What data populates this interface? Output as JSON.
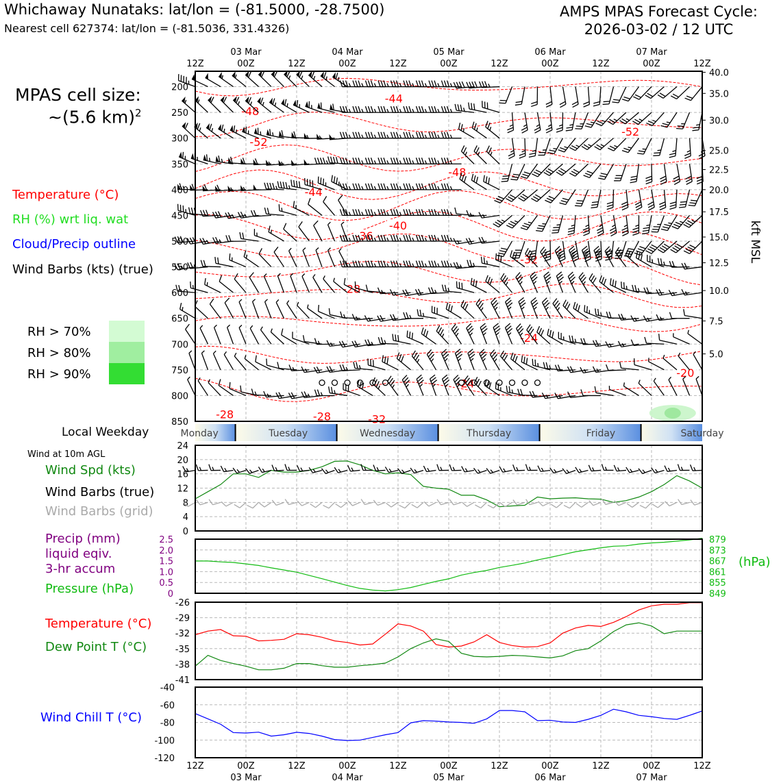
{
  "header": {
    "station_line": "Whichaway Nunataks: lat/lon = (-81.5000, -28.7500)",
    "cell_line": "Nearest cell 627374: lat/lon = (-81.5036, 331.4326)",
    "cycle_line1": "AMPS MPAS Forecast Cycle:",
    "cycle_line2": "2026-03-02 / 12 UTC"
  },
  "cell_size": {
    "line1": "MPAS cell size:",
    "line2": "~(5.6 km)",
    "exponent": "2"
  },
  "legend": {
    "temperature": "Temperature (°C)",
    "rh": "RH (%) wrt liq. wat",
    "cloud": "Cloud/Precip outline",
    "barbs": "Wind Barbs (kts) (true)",
    "rh70": "RH > 70%",
    "rh80": "RH > 80%",
    "rh90": "RH > 90%",
    "kft_label": "kft MSL",
    "weekday_label": "Local Weekday",
    "wind10m_label": "Wind at 10m AGL",
    "wind_spd": "Wind Spd (kts)",
    "wind_barbs_true": "Wind Barbs (true)",
    "wind_barbs_grid": "Wind Barbs (grid)",
    "precip1": "Precip (mm)",
    "precip2": "liquid eqiv.",
    "precip3": "3-hr accum",
    "pressure": "Pressure (hPa)",
    "hpa_unit": "(hPa)",
    "temp2": "Temperature (°C)",
    "dewpoint": "Dew Point T (°C)",
    "windchill": "Wind Chill T (°C)"
  },
  "colors": {
    "temp": "#ff0000",
    "rh": "#22dd22",
    "cloud": "#0000ff",
    "windspd": "#118811",
    "precip": "#800080",
    "pressure": "#11bb11",
    "dew": "#118811",
    "chill": "#0000ff",
    "rh70": "#d3fbd3",
    "rh80": "#a0eea0",
    "rh90": "#33dd33"
  },
  "chart_data": [
    {
      "type": "line",
      "name": "upper-air-cross-section",
      "time_ticks": [
        "12Z",
        "00Z",
        "12Z",
        "00Z",
        "12Z",
        "00Z",
        "12Z",
        "00Z",
        "12Z",
        "00Z",
        "12Z"
      ],
      "date_ticks": [
        "03 Mar",
        "04 Mar",
        "05 Mar",
        "06 Mar",
        "07 Mar"
      ],
      "pressure_ticks": [
        "200",
        "250",
        "300",
        "350",
        "400",
        "450",
        "500",
        "550",
        "600",
        "650",
        "700",
        "750",
        "800",
        "850"
      ],
      "plim": [
        170,
        850
      ],
      "kft_ticks": [
        {
          "p": 172,
          "label": "40.0"
        },
        {
          "p": 213,
          "label": "35.0"
        },
        {
          "p": 265,
          "label": "30.0"
        },
        {
          "p": 324,
          "label": "25.0"
        },
        {
          "p": 361,
          "label": "22.5"
        },
        {
          "p": 400,
          "label": "20.0"
        },
        {
          "p": 443,
          "label": "17.5"
        },
        {
          "p": 492,
          "label": "15.0"
        },
        {
          "p": 542,
          "label": "12.5"
        },
        {
          "p": 596,
          "label": "10.0"
        },
        {
          "p": 655,
          "label": "7.5"
        },
        {
          "p": 719,
          "label": "5.0"
        }
      ],
      "temperature_labels": [
        {
          "t": 13,
          "p": 250,
          "label": "-48"
        },
        {
          "t": 15,
          "p": 310,
          "label": "-52"
        },
        {
          "t": 47,
          "p": 225,
          "label": "-44"
        },
        {
          "t": 62,
          "p": 368,
          "label": "-48"
        },
        {
          "t": 103,
          "p": 290,
          "label": "-52"
        },
        {
          "t": 28,
          "p": 407,
          "label": "-44"
        },
        {
          "t": 48,
          "p": 472,
          "label": "-40"
        },
        {
          "t": 40,
          "p": 492,
          "label": "-36"
        },
        {
          "t": 79,
          "p": 538,
          "label": "-32"
        },
        {
          "t": 37,
          "p": 595,
          "label": "-28"
        },
        {
          "t": 79,
          "p": 690,
          "label": "-24"
        },
        {
          "t": 64,
          "p": 779,
          "label": "-24"
        },
        {
          "t": 116,
          "p": 758,
          "label": "-20"
        },
        {
          "t": 7,
          "p": 839,
          "label": "-28"
        },
        {
          "t": 30,
          "p": 843,
          "label": "-28"
        },
        {
          "t": 43,
          "p": 848,
          "label": "-32"
        }
      ],
      "precip_markers_hours": [
        30,
        33,
        36,
        39,
        42,
        45,
        63,
        66,
        69,
        72,
        75,
        78,
        81
      ],
      "precip_marker_p": 775,
      "weekdays": [
        "Monday",
        "Tuesday",
        "Wednesday",
        "Thursday",
        "Friday",
        "Saturday"
      ]
    },
    {
      "type": "line",
      "name": "wind-10m",
      "title": "Wind Spd (kts)",
      "ylim": [
        0,
        24
      ],
      "yticks": [
        "24",
        "20",
        "16",
        "12",
        "8",
        "4",
        "0"
      ],
      "hours": [
        0,
        3,
        6,
        9,
        12,
        15,
        18,
        21,
        24,
        27,
        30,
        33,
        36,
        39,
        42,
        45,
        48,
        51,
        54,
        57,
        60,
        63,
        66,
        69,
        72,
        75,
        78,
        81,
        84,
        87,
        90,
        93,
        96,
        99,
        102,
        105,
        108,
        111,
        114,
        117,
        120
      ],
      "values": [
        9,
        11,
        13,
        16,
        16,
        15,
        17,
        16.5,
        16.5,
        17,
        18,
        19.5,
        19.6,
        18.5,
        17,
        16,
        16.3,
        15.8,
        12.5,
        12,
        11.7,
        10,
        10,
        8.7,
        6.8,
        7,
        7.2,
        9.5,
        9,
        9.2,
        9.3,
        9,
        8.9,
        8,
        8.5,
        9.5,
        11,
        13,
        15.5,
        14,
        12
      ]
    },
    {
      "type": "line",
      "name": "precip-pressure",
      "precip_ylim": [
        0,
        2.5
      ],
      "precip_ticks": [
        "2.5",
        "2.0",
        "1.5",
        "1.0",
        "0.5",
        "0"
      ],
      "pressure_ylim": [
        849,
        879
      ],
      "pressure_ticks": [
        "879",
        "873",
        "867",
        "861",
        "855",
        "849"
      ],
      "hours": [
        0,
        3,
        6,
        9,
        12,
        15,
        18,
        21,
        24,
        27,
        30,
        33,
        36,
        39,
        42,
        45,
        48,
        51,
        54,
        57,
        60,
        63,
        66,
        69,
        72,
        75,
        78,
        81,
        84,
        87,
        90,
        93,
        96,
        99,
        102,
        105,
        108,
        111,
        114,
        117,
        120
      ],
      "pressure": [
        866.9,
        866.9,
        866.4,
        866.1,
        865.3,
        864.4,
        863.1,
        861.9,
        860.7,
        858.9,
        857.1,
        855.2,
        853.3,
        851.7,
        850.8,
        850.3,
        851.0,
        852.2,
        853.9,
        855.6,
        857.0,
        859.1,
        860.5,
        861.7,
        863.3,
        864.5,
        865.8,
        867.5,
        868.9,
        870.4,
        872.0,
        873.1,
        874.2,
        875.1,
        875.3,
        876.3,
        876.9,
        877.3,
        877.9,
        878.6,
        879.5
      ]
    },
    {
      "type": "line",
      "name": "temp-dewpoint",
      "ylim": [
        -41,
        -26
      ],
      "yticks": [
        "-26",
        "-29",
        "-32",
        "-35",
        "-38",
        "-41"
      ],
      "hours": [
        0,
        3,
        6,
        9,
        12,
        15,
        18,
        21,
        24,
        27,
        30,
        33,
        36,
        39,
        42,
        45,
        48,
        51,
        54,
        57,
        60,
        63,
        66,
        69,
        72,
        75,
        78,
        81,
        84,
        87,
        90,
        93,
        96,
        99,
        102,
        105,
        108,
        111,
        114,
        117,
        120
      ],
      "series": [
        {
          "name": "Temperature (°C)",
          "color": "#ff0000",
          "values": [
            -32.3,
            -31.6,
            -31.3,
            -32.5,
            -32.6,
            -33.5,
            -33.4,
            -33.2,
            -32.1,
            -32.3,
            -32.8,
            -33.5,
            -33.8,
            -34.3,
            -34.1,
            -32.2,
            -30.2,
            -30.6,
            -31.6,
            -34.2,
            -34.7,
            -34.5,
            -33.7,
            -32.3,
            -33.8,
            -34.4,
            -34.7,
            -34.6,
            -33.9,
            -32.0,
            -31.0,
            -30.5,
            -30.7,
            -29.9,
            -28.8,
            -27.5,
            -26.7,
            -26.4,
            -26.4,
            -26.1,
            -26.1
          ]
        },
        {
          "name": "Dew Point T (°C)",
          "color": "#118811",
          "values": [
            -38.4,
            -36.3,
            -37.3,
            -37.9,
            -38.4,
            -39.1,
            -39.1,
            -38.8,
            -37.9,
            -37.9,
            -38.3,
            -38.6,
            -38.6,
            -38.3,
            -38.1,
            -37.8,
            -36.6,
            -35.0,
            -33.9,
            -33.1,
            -33.6,
            -35.9,
            -36.5,
            -36.6,
            -36.5,
            -36.3,
            -36.4,
            -36.6,
            -36.8,
            -36.4,
            -35.4,
            -35.0,
            -33.5,
            -31.7,
            -30.4,
            -30.0,
            -30.6,
            -32.1,
            -31.6,
            -31.6,
            -31.6
          ]
        }
      ]
    },
    {
      "type": "line",
      "name": "wind-chill",
      "ylim": [
        -120,
        -40
      ],
      "yticks": [
        "-40",
        "-60",
        "-80",
        "-100",
        "-120"
      ],
      "hours": [
        0,
        3,
        6,
        9,
        12,
        15,
        18,
        21,
        24,
        27,
        30,
        33,
        36,
        39,
        42,
        45,
        48,
        51,
        54,
        57,
        60,
        63,
        66,
        69,
        72,
        75,
        78,
        81,
        84,
        87,
        90,
        93,
        96,
        99,
        102,
        105,
        108,
        111,
        114,
        117,
        120
      ],
      "series": [
        {
          "name": "Wind Chill T (°C)",
          "color": "#0000ff",
          "values": [
            -70,
            -76,
            -82,
            -91.5,
            -92,
            -91,
            -95.5,
            -94,
            -91.2,
            -92.5,
            -95.5,
            -99.5,
            -100.5,
            -100,
            -97,
            -94,
            -91.5,
            -80.5,
            -78,
            -78.5,
            -79.5,
            -80,
            -81,
            -76,
            -66.5,
            -66.5,
            -68,
            -78,
            -77.5,
            -79.5,
            -80,
            -76.5,
            -72,
            -65,
            -68,
            -72,
            -73.5,
            -75.5,
            -76.5,
            -72,
            -67
          ]
        }
      ]
    }
  ]
}
